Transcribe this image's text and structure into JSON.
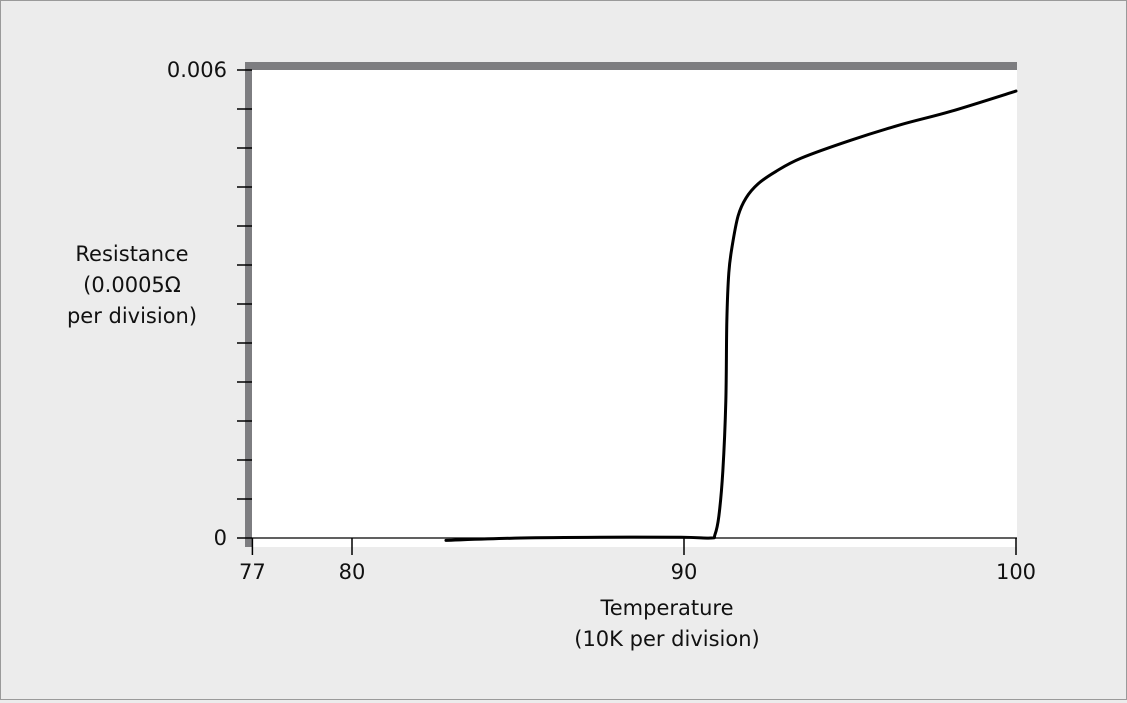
{
  "chart_data": {
    "type": "line",
    "title": "",
    "xlabel": [
      "Temperature",
      "(10K per division)"
    ],
    "ylabel": [
      "Resistance",
      "(0.0005Ω",
      "per division)"
    ],
    "xlim": [
      77,
      100
    ],
    "ylim": [
      0,
      0.006
    ],
    "x_ticks": [
      77,
      80,
      90,
      100
    ],
    "x_tick_labels": [
      "77",
      "80",
      "90",
      "100"
    ],
    "y_tick_step": 0.0005,
    "y_tick_labels": [
      {
        "value": 0,
        "label": "0"
      },
      {
        "value": 0.006,
        "label": "0.006"
      }
    ],
    "grid": false,
    "colors": {
      "line": "#000000",
      "axis_frame": "#7d7d80",
      "background": "#ececec",
      "plot_bg": "#ffffff"
    },
    "series": [
      {
        "x": [
          82.83,
          85.09,
          87.5,
          89.91,
          90.81,
          90.93,
          91.05,
          91.17,
          91.26,
          91.29,
          91.35,
          91.45,
          91.63,
          91.87,
          92.23,
          92.77,
          93.53,
          95.03,
          96.54,
          98.04,
          100
        ],
        "y": [
          -3e-05,
          0,
          1e-05,
          1e-05,
          0,
          4e-05,
          0.00028,
          0.00086,
          0.00176,
          0.00278,
          0.0034,
          0.00374,
          0.00413,
          0.00436,
          0.00454,
          0.0047,
          0.00487,
          0.0051,
          0.0053,
          0.00547,
          0.00573
        ]
      }
    ]
  }
}
